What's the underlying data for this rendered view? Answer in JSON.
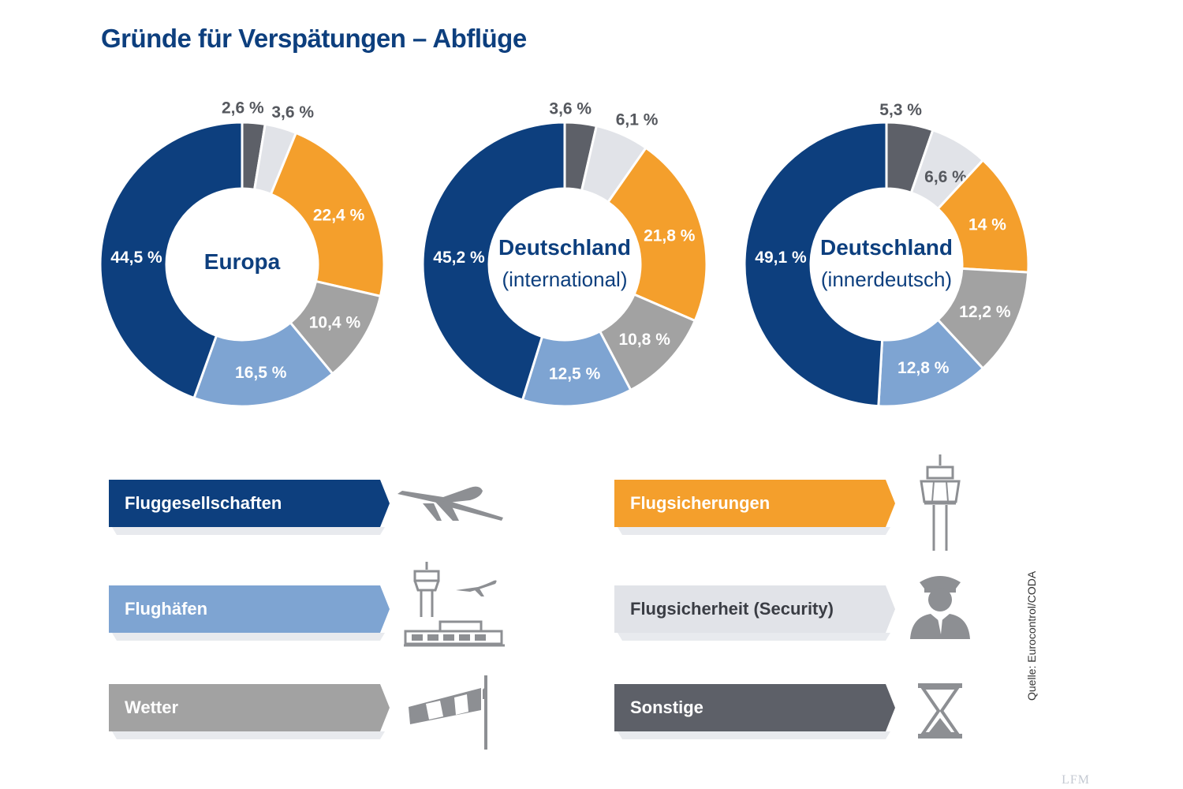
{
  "title": "Gründe für Verspätungen – Abflüge",
  "source": "Quelle: Eurocontrol/CODA",
  "watermark": "LFM",
  "colors": {
    "Fluggesellschaften": "#0d3f7e",
    "Flughäfen": "#7ea4d2",
    "Wetter": "#a2a2a2",
    "Flugsicherungen": "#f49f2c",
    "Flugsicherheit (Security)": "#e1e3e8",
    "Sonstige": "#5d6068"
  },
  "chart_data": [
    {
      "type": "pie",
      "title": "Europa",
      "subtitle": "",
      "slices": [
        {
          "category": "Sonstige",
          "value": 2.6,
          "label": "2,6 %"
        },
        {
          "category": "Flugsicherheit (Security)",
          "value": 3.6,
          "label": "3,6 %"
        },
        {
          "category": "Flugsicherungen",
          "value": 22.4,
          "label": "22,4 %"
        },
        {
          "category": "Wetter",
          "value": 10.4,
          "label": "10,4 %"
        },
        {
          "category": "Flughäfen",
          "value": 16.5,
          "label": "16,5 %"
        },
        {
          "category": "Fluggesellschaften",
          "value": 44.5,
          "label": "44,5 %"
        }
      ]
    },
    {
      "type": "pie",
      "title": "Deutschland",
      "subtitle": "(international)",
      "slices": [
        {
          "category": "Sonstige",
          "value": 3.6,
          "label": "3,6 %"
        },
        {
          "category": "Flugsicherheit (Security)",
          "value": 6.1,
          "label": "6,1 %"
        },
        {
          "category": "Flugsicherungen",
          "value": 21.8,
          "label": "21,8 %"
        },
        {
          "category": "Wetter",
          "value": 10.8,
          "label": "10,8 %"
        },
        {
          "category": "Flughäfen",
          "value": 12.5,
          "label": "12,5 %"
        },
        {
          "category": "Fluggesellschaften",
          "value": 45.2,
          "label": "45,2 %"
        }
      ]
    },
    {
      "type": "pie",
      "title": "Deutschland",
      "subtitle": "(innerdeutsch)",
      "slices": [
        {
          "category": "Sonstige",
          "value": 5.3,
          "label": "5,3 %"
        },
        {
          "category": "Flugsicherheit (Security)",
          "value": 6.6,
          "label": "6,6 %"
        },
        {
          "category": "Flugsicherungen",
          "value": 14,
          "label": "14 %"
        },
        {
          "category": "Wetter",
          "value": 12.2,
          "label": "12,2 %"
        },
        {
          "category": "Flughäfen",
          "value": 12.8,
          "label": "12,8 %"
        },
        {
          "category": "Fluggesellschaften",
          "value": 49.1,
          "label": "49,1 %"
        }
      ]
    }
  ],
  "legend": [
    {
      "label": "Fluggesellschaften",
      "icon": "airplane-icon"
    },
    {
      "label": "Flughäfen",
      "icon": "airport-icon"
    },
    {
      "label": "Wetter",
      "icon": "windsock-icon"
    },
    {
      "label": "Flugsicherungen",
      "icon": "control-tower-icon"
    },
    {
      "label": "Flugsicherheit (Security)",
      "icon": "security-officer-icon"
    },
    {
      "label": "Sonstige",
      "icon": "hourglass-icon"
    }
  ]
}
